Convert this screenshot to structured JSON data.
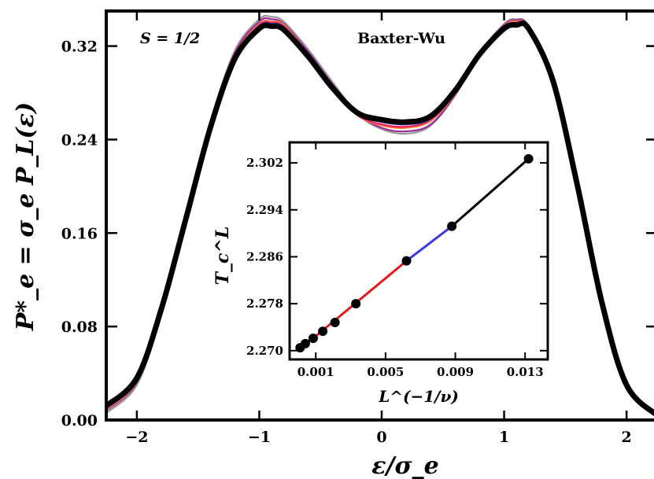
{
  "chart_data": [
    {
      "type": "line",
      "title": "Baxter-Wu",
      "annotation": "S = 1/2",
      "xlabel": "ε/σ_e",
      "ylabel": "P*_e = σ_e P_L(ε)",
      "xlim": [
        -2.25,
        2.25
      ],
      "ylim": [
        0.0,
        0.35
      ],
      "xticks": [
        -2,
        -1,
        0,
        1,
        2
      ],
      "xtick_labels": [
        "−2",
        "−1",
        "0",
        "1",
        "2"
      ],
      "yticks": [
        0.0,
        0.08,
        0.16,
        0.24,
        0.32
      ],
      "ytick_labels": [
        "0.00",
        "0.08",
        "0.16",
        "0.24",
        "0.32"
      ],
      "grid": false,
      "series": [
        {
          "color": "#999999",
          "values": {
            "x": [
              -2.25,
              -2.0,
              -1.8,
              -1.6,
              -1.4,
              -1.2,
              -1.0,
              -0.9,
              -0.8,
              -0.6,
              -0.4,
              -0.2,
              0.0,
              0.2,
              0.4,
              0.6,
              0.8,
              1.0,
              1.1,
              1.2,
              1.4,
              1.6,
              1.8,
              2.0,
              2.25
            ],
            "y": [
              0.006,
              0.03,
              0.09,
              0.172,
              0.255,
              0.316,
              0.343,
              0.345,
              0.341,
              0.317,
              0.289,
              0.262,
              0.249,
              0.245,
              0.252,
              0.278,
              0.314,
              0.339,
              0.343,
              0.337,
              0.29,
              0.2,
              0.1,
              0.03,
              0.004
            ]
          }
        },
        {
          "color": "#9b2a9b",
          "values": {
            "x": [
              -2.25,
              -2.0,
              -1.8,
              -1.6,
              -1.4,
              -1.2,
              -1.0,
              -0.9,
              -0.8,
              -0.6,
              -0.4,
              -0.2,
              0.0,
              0.2,
              0.4,
              0.6,
              0.8,
              1.0,
              1.1,
              1.2,
              1.4,
              1.6,
              1.8,
              2.0,
              2.25
            ],
            "y": [
              0.008,
              0.032,
              0.091,
              0.172,
              0.254,
              0.314,
              0.341,
              0.343,
              0.339,
              0.315,
              0.287,
              0.262,
              0.25,
              0.247,
              0.253,
              0.278,
              0.313,
              0.338,
              0.342,
              0.337,
              0.29,
              0.2,
              0.1,
              0.03,
              0.004
            ]
          }
        },
        {
          "color": "#ff8a3d",
          "values": {
            "x": [
              -2.25,
              -2.0,
              -1.8,
              -1.6,
              -1.4,
              -1.2,
              -1.0,
              -0.9,
              -0.8,
              -0.6,
              -0.4,
              -0.2,
              0.0,
              0.2,
              0.4,
              0.6,
              0.8,
              1.0,
              1.1,
              1.2,
              1.4,
              1.6,
              1.8,
              2.0,
              2.25
            ],
            "y": [
              0.009,
              0.033,
              0.092,
              0.172,
              0.253,
              0.312,
              0.339,
              0.341,
              0.338,
              0.313,
              0.285,
              0.261,
              0.252,
              0.25,
              0.256,
              0.279,
              0.313,
              0.337,
              0.341,
              0.336,
              0.29,
              0.2,
              0.1,
              0.03,
              0.004
            ]
          }
        },
        {
          "color": "#e8205a",
          "values": {
            "x": [
              -2.25,
              -2.0,
              -1.8,
              -1.6,
              -1.4,
              -1.2,
              -1.0,
              -0.9,
              -0.8,
              -0.6,
              -0.4,
              -0.2,
              0.0,
              0.2,
              0.4,
              0.6,
              0.8,
              1.0,
              1.1,
              1.2,
              1.4,
              1.6,
              1.8,
              2.0,
              2.25
            ],
            "y": [
              0.01,
              0.034,
              0.093,
              0.172,
              0.252,
              0.311,
              0.338,
              0.34,
              0.337,
              0.312,
              0.284,
              0.261,
              0.253,
              0.251,
              0.257,
              0.28,
              0.313,
              0.336,
              0.34,
              0.336,
              0.29,
              0.2,
              0.1,
              0.03,
              0.004
            ]
          }
        },
        {
          "color": "#3a4ee8",
          "values": {
            "x": [
              -2.25,
              -2.0,
              -1.8,
              -1.6,
              -1.4,
              -1.2,
              -1.0,
              -0.9,
              -0.8,
              -0.6,
              -0.4,
              -0.2,
              0.0,
              0.2,
              0.4,
              0.6,
              0.8,
              1.0,
              1.1,
              1.2,
              1.4,
              1.6,
              1.8,
              2.0,
              2.25
            ],
            "y": [
              0.011,
              0.035,
              0.094,
              0.172,
              0.251,
              0.31,
              0.337,
              0.339,
              0.336,
              0.312,
              0.284,
              0.262,
              0.255,
              0.253,
              0.258,
              0.281,
              0.313,
              0.336,
              0.339,
              0.336,
              0.29,
              0.2,
              0.1,
              0.03,
              0.004
            ]
          }
        },
        {
          "color": "#000000",
          "values": {
            "x": [
              -2.25,
              -2.0,
              -1.8,
              -1.6,
              -1.4,
              -1.2,
              -1.0,
              -0.9,
              -0.8,
              -0.6,
              -0.4,
              -0.2,
              0.0,
              0.2,
              0.4,
              0.6,
              0.8,
              1.0,
              1.1,
              1.2,
              1.4,
              1.6,
              1.8,
              2.0,
              2.25
            ],
            "y": [
              0.012,
              0.036,
              0.095,
              0.172,
              0.25,
              0.309,
              0.335,
              0.337,
              0.334,
              0.311,
              0.284,
              0.263,
              0.257,
              0.255,
              0.26,
              0.282,
              0.313,
              0.335,
              0.338,
              0.335,
              0.29,
              0.2,
              0.1,
              0.03,
              0.004
            ]
          }
        }
      ]
    },
    {
      "type": "scatter",
      "inset": true,
      "xlabel": "L^(−1/ν)",
      "ylabel": "T_c^L",
      "xlim": [
        -0.0005,
        0.0143
      ],
      "ylim": [
        2.2685,
        2.3055
      ],
      "xticks": [
        0.001,
        0.005,
        0.009,
        0.013
      ],
      "xtick_labels": [
        "0.001",
        "0.005",
        "0.009",
        "0.013"
      ],
      "yticks": [
        2.27,
        2.278,
        2.286,
        2.294,
        2.302
      ],
      "ytick_labels": [
        "2.270",
        "2.278",
        "2.286",
        "2.294",
        "2.302"
      ],
      "points": {
        "x": [
          0.0001,
          0.0004,
          0.00085,
          0.0014,
          0.0021,
          0.0033,
          0.0062,
          0.0088,
          0.0132
        ],
        "y": [
          2.2705,
          2.2712,
          2.2721,
          2.2733,
          2.2748,
          2.278,
          2.2853,
          2.2912,
          2.3027
        ]
      },
      "segments": [
        {
          "color": "#000000",
          "from": 0,
          "to": 1
        },
        {
          "color": "#000000",
          "from": 1,
          "to": 2
        },
        {
          "color": "#e0191e",
          "from": 2,
          "to": 6
        },
        {
          "color": "#3a3ae8",
          "from": 6,
          "to": 7
        },
        {
          "color": "#000000",
          "from": 7,
          "to": 8
        }
      ]
    }
  ]
}
